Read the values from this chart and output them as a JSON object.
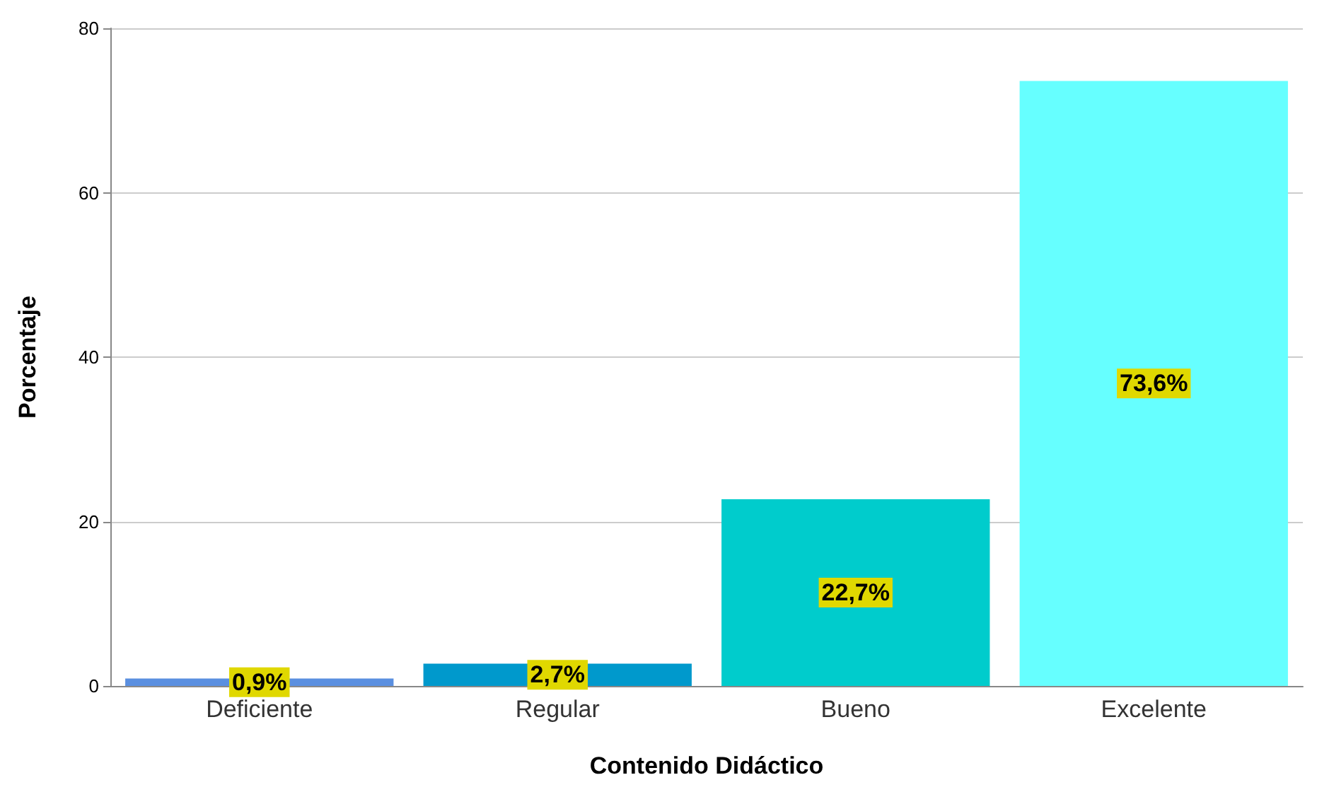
{
  "chart_data": {
    "type": "bar",
    "xlabel": "Contenido Didáctico",
    "ylabel": "Porcentaje",
    "categories": [
      "Deficiente",
      "Regular",
      "Bueno",
      "Excelente"
    ],
    "values": [
      0.9,
      2.7,
      22.7,
      73.6
    ],
    "colors": [
      "#5a8fe0",
      "#0099cc",
      "#00cccc",
      "#66ffff"
    ],
    "value_labels": [
      "0,9%",
      "2,7%",
      "22,7%",
      "73,6%"
    ],
    "ylim": [
      0,
      80
    ],
    "yticks": [
      0,
      20,
      40,
      60,
      80
    ],
    "grid": "y"
  }
}
